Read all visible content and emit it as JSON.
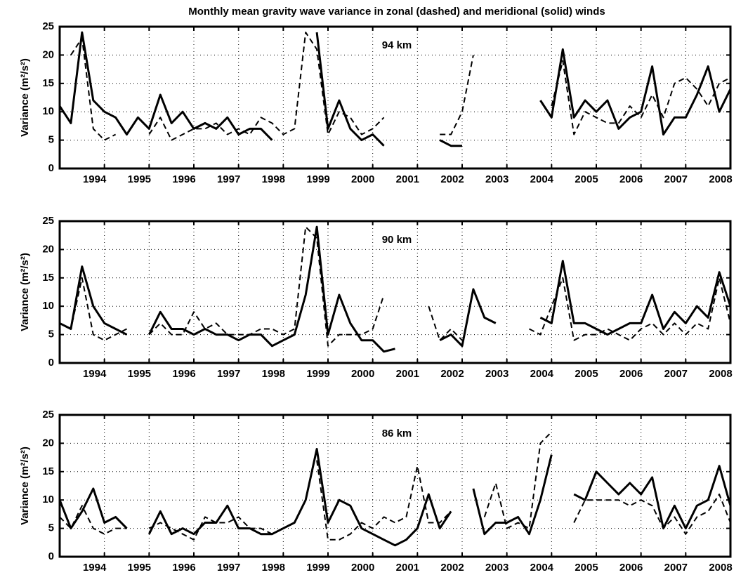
{
  "title": "Monthly mean gravity wave variance in zonal (dashed) and meridional (solid) winds",
  "chart_data": [
    {
      "type": "line",
      "annotation": "94 km",
      "y_label": "Variance (m²/s²)",
      "x": [
        1993,
        1993.25,
        1993.5,
        1993.75,
        1994,
        1994.25,
        1994.5,
        1994.75,
        1995,
        1995.25,
        1995.5,
        1995.75,
        1996,
        1996.25,
        1996.5,
        1996.75,
        1997,
        1997.25,
        1997.5,
        1997.75,
        1998,
        1998.25,
        1998.5,
        1998.75,
        1999,
        1999.25,
        1999.5,
        1999.75,
        2000,
        2000.25,
        2000.5,
        2000.75,
        2001,
        2001.25,
        2001.5,
        2001.75,
        2002,
        2002.25,
        2002.5,
        2002.75,
        2003,
        2003.25,
        2003.5,
        2003.75,
        2004,
        2004.25,
        2004.5,
        2004.75,
        2005,
        2005.25,
        2005.5,
        2005.75,
        2006,
        2006.25,
        2006.5,
        2006.75,
        2007,
        2007.25,
        2007.5,
        2007.75,
        2008
      ],
      "xlim": [
        1993,
        2008
      ],
      "xticks": [
        1994,
        1995,
        1996,
        1997,
        1998,
        1999,
        2000,
        2001,
        2002,
        2003,
        2004,
        2005,
        2006,
        2007,
        2008
      ],
      "ylim": [
        0,
        25
      ],
      "yticks": [
        0,
        5,
        10,
        15,
        20,
        25
      ],
      "grid": true,
      "series": [
        {
          "style": "dashed",
          "color": "#000000",
          "values": [
            null,
            20,
            23,
            7,
            5,
            6,
            null,
            null,
            6,
            9,
            5,
            6,
            7,
            7,
            8,
            6,
            7,
            6,
            9,
            8,
            6,
            7,
            24,
            21,
            6,
            10,
            9,
            6,
            7,
            9,
            null,
            null,
            null,
            null,
            6,
            6,
            10,
            20,
            null,
            null,
            null,
            null,
            null,
            null,
            11,
            19,
            6,
            10,
            9,
            8,
            8,
            11,
            9,
            13,
            9,
            15,
            16,
            14,
            11,
            15,
            16
          ]
        },
        {
          "style": "solid",
          "color": "#000000",
          "values": [
            11,
            8,
            24,
            12,
            10,
            9,
            6,
            9,
            7,
            13,
            8,
            10,
            7,
            8,
            7,
            9,
            6,
            7,
            7,
            5,
            null,
            7,
            null,
            24,
            7,
            12,
            7,
            5,
            6,
            4,
            null,
            null,
            null,
            null,
            5,
            4,
            4,
            null,
            12,
            null,
            null,
            null,
            null,
            12,
            9,
            21,
            9,
            12,
            10,
            12,
            7,
            9,
            10,
            18,
            6,
            9,
            9,
            13,
            18,
            10,
            14
          ]
        }
      ]
    },
    {
      "type": "line",
      "annotation": "90 km",
      "y_label": "Variance (m²/s²)",
      "x": [
        1993,
        1993.25,
        1993.5,
        1993.75,
        1994,
        1994.25,
        1994.5,
        1994.75,
        1995,
        1995.25,
        1995.5,
        1995.75,
        1996,
        1996.25,
        1996.5,
        1996.75,
        1997,
        1997.25,
        1997.5,
        1997.75,
        1998,
        1998.25,
        1998.5,
        1998.75,
        1999,
        1999.25,
        1999.5,
        1999.75,
        2000,
        2000.25,
        2000.5,
        2000.75,
        2001,
        2001.25,
        2001.5,
        2001.75,
        2002,
        2002.25,
        2002.5,
        2002.75,
        2003,
        2003.25,
        2003.5,
        2003.75,
        2004,
        2004.25,
        2004.5,
        2004.75,
        2005,
        2005.25,
        2005.5,
        2005.75,
        2006,
        2006.25,
        2006.5,
        2006.75,
        2007,
        2007.25,
        2007.5,
        2007.75,
        2008
      ],
      "xlim": [
        1993,
        2008
      ],
      "xticks": [
        1994,
        1995,
        1996,
        1997,
        1998,
        1999,
        2000,
        2001,
        2002,
        2003,
        2004,
        2005,
        2006,
        2007,
        2008
      ],
      "ylim": [
        0,
        25
      ],
      "yticks": [
        0,
        5,
        10,
        15,
        20,
        25
      ],
      "grid": true,
      "series": [
        {
          "style": "dashed",
          "color": "#000000",
          "values": [
            7,
            6,
            15,
            5,
            4,
            5,
            6,
            null,
            5,
            7,
            5,
            5,
            9,
            6,
            7,
            5,
            5,
            5,
            6,
            6,
            5,
            6,
            24,
            22,
            3,
            5,
            5,
            5,
            6,
            12,
            null,
            null,
            null,
            10,
            4,
            6,
            4,
            null,
            null,
            null,
            8,
            null,
            6,
            5,
            10,
            15,
            4,
            5,
            5,
            6,
            5,
            4,
            6,
            7,
            5,
            7,
            5,
            7,
            6,
            15,
            7
          ]
        },
        {
          "style": "solid",
          "color": "#000000",
          "values": [
            7,
            6,
            17,
            10,
            7,
            6,
            5,
            null,
            5,
            9,
            6,
            6,
            5,
            6,
            5,
            5,
            4,
            5,
            5,
            3,
            4,
            5,
            12,
            24,
            5,
            12,
            7,
            4,
            4,
            2,
            2.5,
            null,
            null,
            null,
            4,
            5,
            3,
            13,
            8,
            7,
            null,
            null,
            null,
            8,
            7,
            18,
            7,
            7,
            6,
            5,
            6,
            7,
            7,
            12,
            6,
            9,
            7,
            10,
            8,
            16,
            10
          ]
        }
      ]
    },
    {
      "type": "line",
      "annotation": "86 km",
      "y_label": "Variance (m²/s²)",
      "x": [
        1993,
        1993.25,
        1993.5,
        1993.75,
        1994,
        1994.25,
        1994.5,
        1994.75,
        1995,
        1995.25,
        1995.5,
        1995.75,
        1996,
        1996.25,
        1996.5,
        1996.75,
        1997,
        1997.25,
        1997.5,
        1997.75,
        1998,
        1998.25,
        1998.5,
        1998.75,
        1999,
        1999.25,
        1999.5,
        1999.75,
        2000,
        2000.25,
        2000.5,
        2000.75,
        2001,
        2001.25,
        2001.5,
        2001.75,
        2002,
        2002.25,
        2002.5,
        2002.75,
        2003,
        2003.25,
        2003.5,
        2003.75,
        2004,
        2004.25,
        2004.5,
        2004.75,
        2005,
        2005.25,
        2005.5,
        2005.75,
        2006,
        2006.25,
        2006.5,
        2006.75,
        2007,
        2007.25,
        2007.5,
        2007.75,
        2008
      ],
      "xlim": [
        1993,
        2008
      ],
      "xticks": [
        1994,
        1995,
        1996,
        1997,
        1998,
        1999,
        2000,
        2001,
        2002,
        2003,
        2004,
        2005,
        2006,
        2007,
        2008
      ],
      "ylim": [
        0,
        25
      ],
      "yticks": [
        0,
        5,
        10,
        15,
        20,
        25
      ],
      "grid": true,
      "series": [
        {
          "style": "dashed",
          "color": "#000000",
          "values": [
            7,
            5,
            9,
            5,
            4,
            5,
            5,
            null,
            5,
            6,
            5,
            4,
            3,
            7,
            6,
            6,
            7,
            5,
            5,
            4,
            5,
            6,
            null,
            17,
            3,
            3,
            4,
            6,
            5,
            7,
            6,
            7,
            16,
            6,
            6,
            8,
            null,
            null,
            7,
            13,
            5,
            6,
            5,
            20,
            22,
            null,
            6,
            10,
            10,
            10,
            10,
            9,
            10,
            9,
            5,
            7,
            4,
            7,
            8,
            11,
            6
          ]
        },
        {
          "style": "solid",
          "color": "#000000",
          "values": [
            10,
            5,
            8,
            12,
            6,
            7,
            5,
            null,
            4,
            8,
            4,
            5,
            4,
            6,
            6,
            9,
            5,
            5,
            4,
            4,
            5,
            6,
            10,
            19,
            6,
            10,
            9,
            5,
            4,
            3,
            2,
            3,
            5,
            11,
            5,
            8,
            null,
            12,
            4,
            6,
            6,
            7,
            4,
            10,
            18,
            null,
            11,
            10,
            15,
            13,
            11,
            13,
            11,
            14,
            5,
            9,
            5,
            9,
            10,
            16,
            9
          ]
        }
      ]
    }
  ]
}
